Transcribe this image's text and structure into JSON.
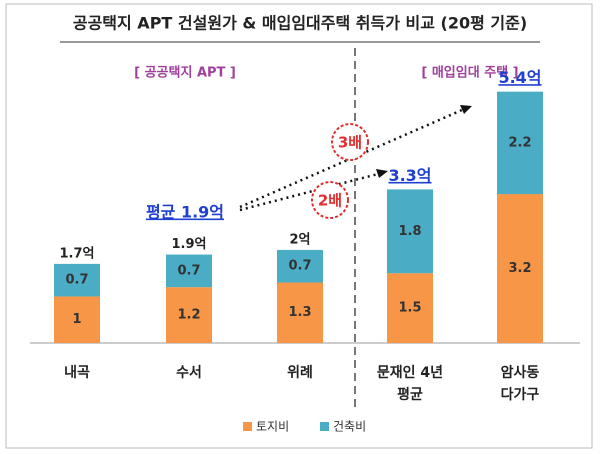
{
  "chart_data": {
    "type": "stacked_bar",
    "title": "공공택지 APT 건설원가 & 매입임대주택 취득가 비교 (20평 기준)",
    "categories": [
      "내곡",
      "수서",
      "위례",
      "문재인 4년\n평균",
      "암사동\n다가구"
    ],
    "series": [
      {
        "name": "토지비",
        "color": "#f79646",
        "values": [
          1,
          1.2,
          1.3,
          1.5,
          3.2
        ]
      },
      {
        "name": "건축비",
        "color": "#4bacc6",
        "values": [
          0.7,
          0.7,
          0.7,
          1.8,
          2.2
        ]
      }
    ],
    "totals": {
      "values": [
        1.7,
        1.9,
        2,
        3.3,
        5.4
      ],
      "value_labels": [
        "1.7억",
        "1.9억",
        "2억",
        "3.3억",
        "5.4억"
      ]
    },
    "ylim": [
      0,
      5.5
    ],
    "group_labels": [
      "[ 공공택지 APT ]",
      "[ 매입임대 주택 ]"
    ],
    "annotations": {
      "average": {
        "value": 1.9,
        "label": "평균 1.9억"
      },
      "ratio_high": "3배",
      "ratio_low": "2배"
    },
    "legend": "bottom"
  }
}
